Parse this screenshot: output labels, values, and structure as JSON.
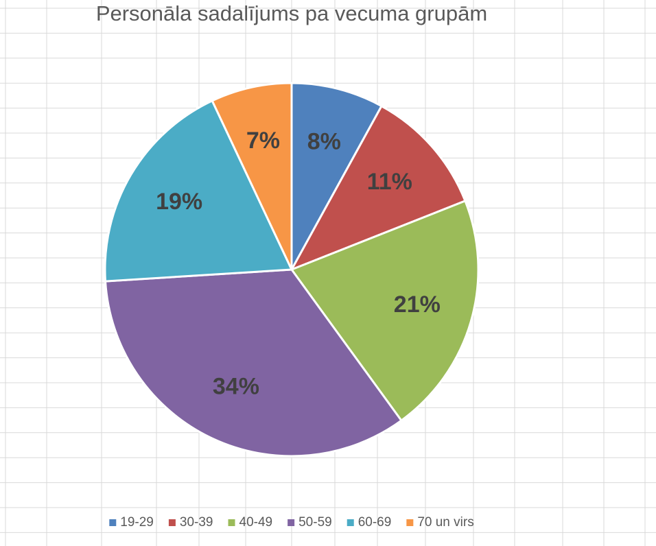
{
  "chart_data": {
    "type": "pie",
    "title": "Personāla sadalījums pa vecuma grupām",
    "categories": [
      "19-29",
      "30-39",
      "40-49",
      "50-59",
      "60-69",
      "70 un virs"
    ],
    "values": [
      8,
      11,
      21,
      34,
      19,
      7
    ],
    "value_labels": [
      "8%",
      "11%",
      "21%",
      "34%",
      "19%",
      "7%"
    ],
    "colors": [
      "#4f81bd",
      "#c0504d",
      "#9bbb59",
      "#8064a2",
      "#4bacc6",
      "#f79646"
    ],
    "legend": "bottom"
  }
}
